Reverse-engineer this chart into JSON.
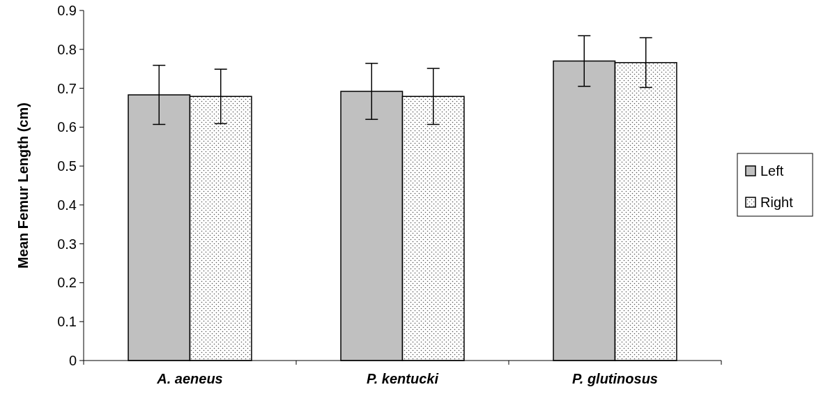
{
  "chart_data": {
    "type": "bar",
    "ylabel": "Mean Femur Length (cm)",
    "categories": [
      "A. aeneus",
      "P. kentucki",
      "P. glutinosus"
    ],
    "series": [
      {
        "name": "Left",
        "color": "#c0c0c0",
        "values": [
          0.683,
          0.692,
          0.77
        ],
        "errors": [
          0.076,
          0.072,
          0.065
        ]
      },
      {
        "name": "Right",
        "color": "#ffffff",
        "values": [
          0.679,
          0.679,
          0.766
        ],
        "errors": [
          0.07,
          0.072,
          0.064
        ]
      }
    ],
    "ylim": [
      0,
      0.9
    ],
    "yticks": [
      0,
      0.1,
      0.2,
      0.3,
      0.4,
      0.5,
      0.6,
      0.7,
      0.8,
      0.9
    ],
    "grid": false,
    "legend": "right"
  }
}
